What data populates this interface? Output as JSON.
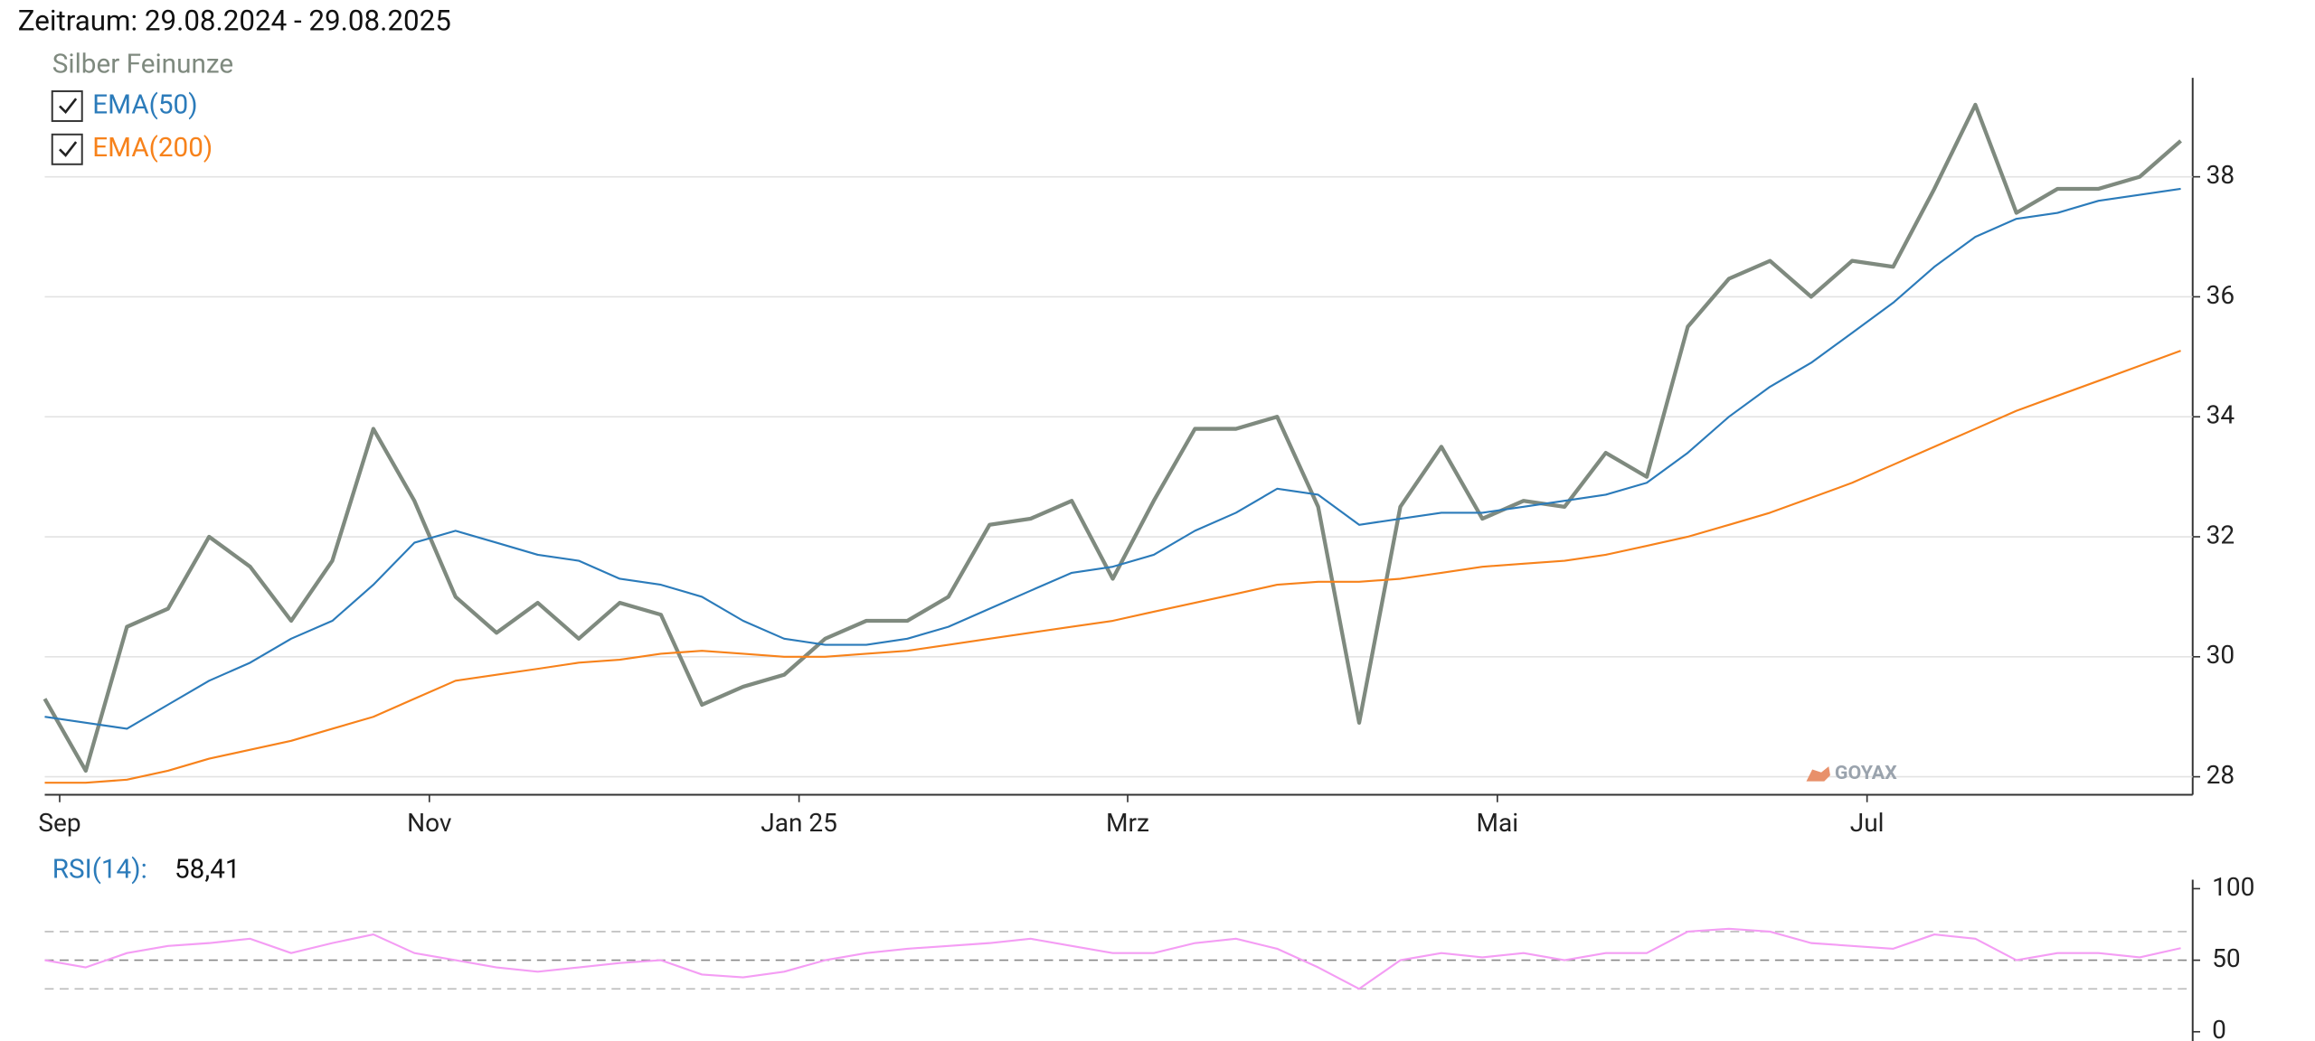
{
  "chart_data": [
    {
      "type": "line",
      "title": "Zeitraum: 29.08.2024 - 29.08.2025",
      "categories": [
        "Sep",
        null,
        null,
        null,
        null,
        null,
        null,
        null,
        null,
        "Nov",
        null,
        null,
        null,
        null,
        null,
        null,
        null,
        null,
        "Jan 25",
        null,
        null,
        null,
        null,
        null,
        null,
        null,
        "Mrz",
        null,
        null,
        null,
        null,
        null,
        null,
        null,
        null,
        "Mai",
        null,
        null,
        null,
        null,
        null,
        null,
        null,
        null,
        "Jul",
        null,
        null,
        null,
        null,
        null,
        null,
        null,
        null
      ],
      "series": [
        {
          "name": "Silber Feinunze",
          "color": "#7f8a7f",
          "values": [
            29.3,
            28.1,
            30.5,
            30.8,
            32.0,
            31.5,
            30.6,
            31.6,
            33.8,
            32.6,
            31.0,
            30.4,
            30.9,
            30.3,
            30.9,
            30.7,
            29.2,
            29.5,
            29.7,
            30.3,
            30.6,
            30.6,
            31.0,
            32.2,
            32.3,
            32.6,
            31.3,
            32.6,
            33.8,
            33.8,
            34.0,
            32.5,
            28.9,
            32.5,
            33.5,
            32.3,
            32.6,
            32.5,
            33.4,
            33.0,
            35.5,
            36.3,
            36.6,
            36.0,
            36.6,
            36.5,
            37.8,
            39.2,
            37.4,
            37.8,
            37.8,
            38.0,
            38.6
          ]
        },
        {
          "name": "EMA(50)",
          "color": "#2b7bba",
          "values": [
            29.0,
            28.9,
            28.8,
            29.2,
            29.6,
            29.9,
            30.3,
            30.6,
            31.2,
            31.9,
            32.1,
            31.9,
            31.7,
            31.6,
            31.3,
            31.2,
            31.0,
            30.6,
            30.3,
            30.2,
            30.2,
            30.3,
            30.5,
            30.8,
            31.1,
            31.4,
            31.5,
            31.7,
            32.1,
            32.4,
            32.8,
            32.7,
            32.2,
            32.3,
            32.4,
            32.4,
            32.5,
            32.6,
            32.7,
            32.9,
            33.4,
            34.0,
            34.5,
            34.9,
            35.4,
            35.9,
            36.5,
            37.0,
            37.3,
            37.4,
            37.6,
            37.7,
            37.8
          ]
        },
        {
          "name": "EMA(200)",
          "color": "#f7821b",
          "values": [
            27.9,
            27.9,
            27.95,
            28.1,
            28.3,
            28.45,
            28.6,
            28.8,
            29.0,
            29.3,
            29.6,
            29.7,
            29.8,
            29.9,
            29.95,
            30.05,
            30.1,
            30.05,
            30.0,
            30.0,
            30.05,
            30.1,
            30.2,
            30.3,
            30.4,
            30.5,
            30.6,
            30.75,
            30.9,
            31.05,
            31.2,
            31.25,
            31.25,
            31.3,
            31.4,
            31.5,
            31.55,
            31.6,
            31.7,
            31.85,
            32.0,
            32.2,
            32.4,
            32.65,
            32.9,
            33.2,
            33.5,
            33.8,
            34.1,
            34.35,
            34.6,
            34.85,
            35.1
          ]
        }
      ],
      "ylim": [
        27.7,
        39.65
      ],
      "yticks": [
        28,
        30,
        32,
        34,
        36,
        38
      ],
      "grid": true,
      "watermark": "GOYAX"
    },
    {
      "type": "line",
      "title": "RSI(14):",
      "current_value": 58.41,
      "current_value_label": "58,41",
      "series": [
        {
          "color": "#f49df4",
          "values": [
            50,
            45,
            55,
            60,
            62,
            65,
            55,
            62,
            68,
            55,
            50,
            45,
            42,
            45,
            48,
            50,
            40,
            38,
            42,
            50,
            55,
            58,
            60,
            62,
            65,
            60,
            55,
            55,
            62,
            65,
            58,
            45,
            30,
            50,
            55,
            52,
            55,
            50,
            55,
            55,
            70,
            72,
            70,
            62,
            60,
            58,
            68,
            65,
            50,
            55,
            55,
            52,
            58.41
          ]
        }
      ],
      "ylim": [
        0,
        100
      ],
      "yticks": [
        0,
        50,
        100
      ],
      "reference_lines": [
        30,
        50,
        70
      ]
    }
  ]
}
